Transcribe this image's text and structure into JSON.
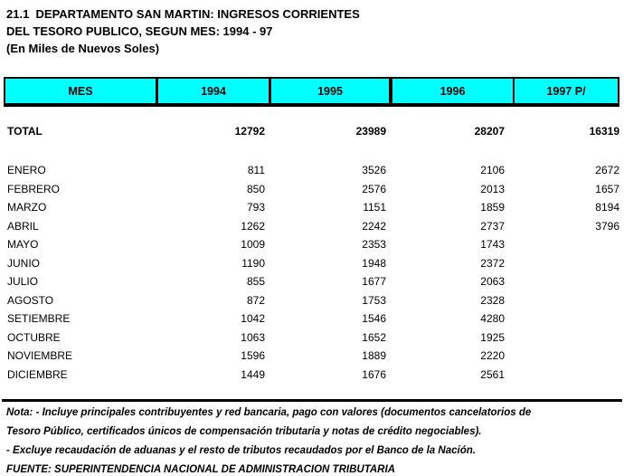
{
  "title": {
    "line1": "21.1  DEPARTAMENTO SAN MARTIN: INGRESOS CORRIENTES",
    "line2": "DEL TESORO PUBLICO, SEGUN MES: 1994 - 97",
    "line3": "(En Miles de Nuevos Soles)"
  },
  "colors": {
    "header_bg": "#00FFFF",
    "border": "#000000",
    "text": "#000000"
  },
  "table": {
    "columns": [
      "MES",
      "1994",
      "1995",
      "1996",
      "1997 P/"
    ],
    "total": {
      "label": "TOTAL",
      "values": [
        "12792",
        "23989",
        "28207",
        "16319"
      ]
    },
    "rows": [
      {
        "label": "ENERO",
        "values": [
          "811",
          "3526",
          "2106",
          "2672"
        ]
      },
      {
        "label": "FEBRERO",
        "values": [
          "850",
          "2576",
          "2013",
          "1657"
        ]
      },
      {
        "label": "MARZO",
        "values": [
          "793",
          "1151",
          "1859",
          "8194"
        ]
      },
      {
        "label": "ABRIL",
        "values": [
          "1262",
          "2242",
          "2737",
          "3796"
        ]
      },
      {
        "label": "MAYO",
        "values": [
          "1009",
          "2353",
          "1743",
          ""
        ]
      },
      {
        "label": "JUNIO",
        "values": [
          "1190",
          "1948",
          "2372",
          ""
        ]
      },
      {
        "label": "JULIO",
        "values": [
          "855",
          "1677",
          "2063",
          ""
        ]
      },
      {
        "label": "AGOSTO",
        "values": [
          "872",
          "1753",
          "2328",
          ""
        ]
      },
      {
        "label": "SETIEMBRE",
        "values": [
          "1042",
          "1546",
          "4280",
          ""
        ]
      },
      {
        "label": "OCTUBRE",
        "values": [
          "1063",
          "1652",
          "1925",
          ""
        ]
      },
      {
        "label": "NOVIEMBRE",
        "values": [
          "1596",
          "1889",
          "2220",
          ""
        ]
      },
      {
        "label": "DICIEMBRE",
        "values": [
          "1449",
          "1676",
          "2561",
          ""
        ]
      }
    ]
  },
  "notes": {
    "line1": "Nota: - Incluye principales contribuyentes y red bancaria, pago con valores (documentos cancelatorios de",
    "line2": "Tesoro Público, certificados únicos de compensación tributaria y notas de crédito negociables).",
    "line3": "- Excluye recaudación de aduanas y el resto de tributos recaudados por el Banco de la Nación.",
    "line4": "FUENTE: SUPERINTENDENCIA NACIONAL DE ADMINISTRACION TRIBUTARIA"
  }
}
